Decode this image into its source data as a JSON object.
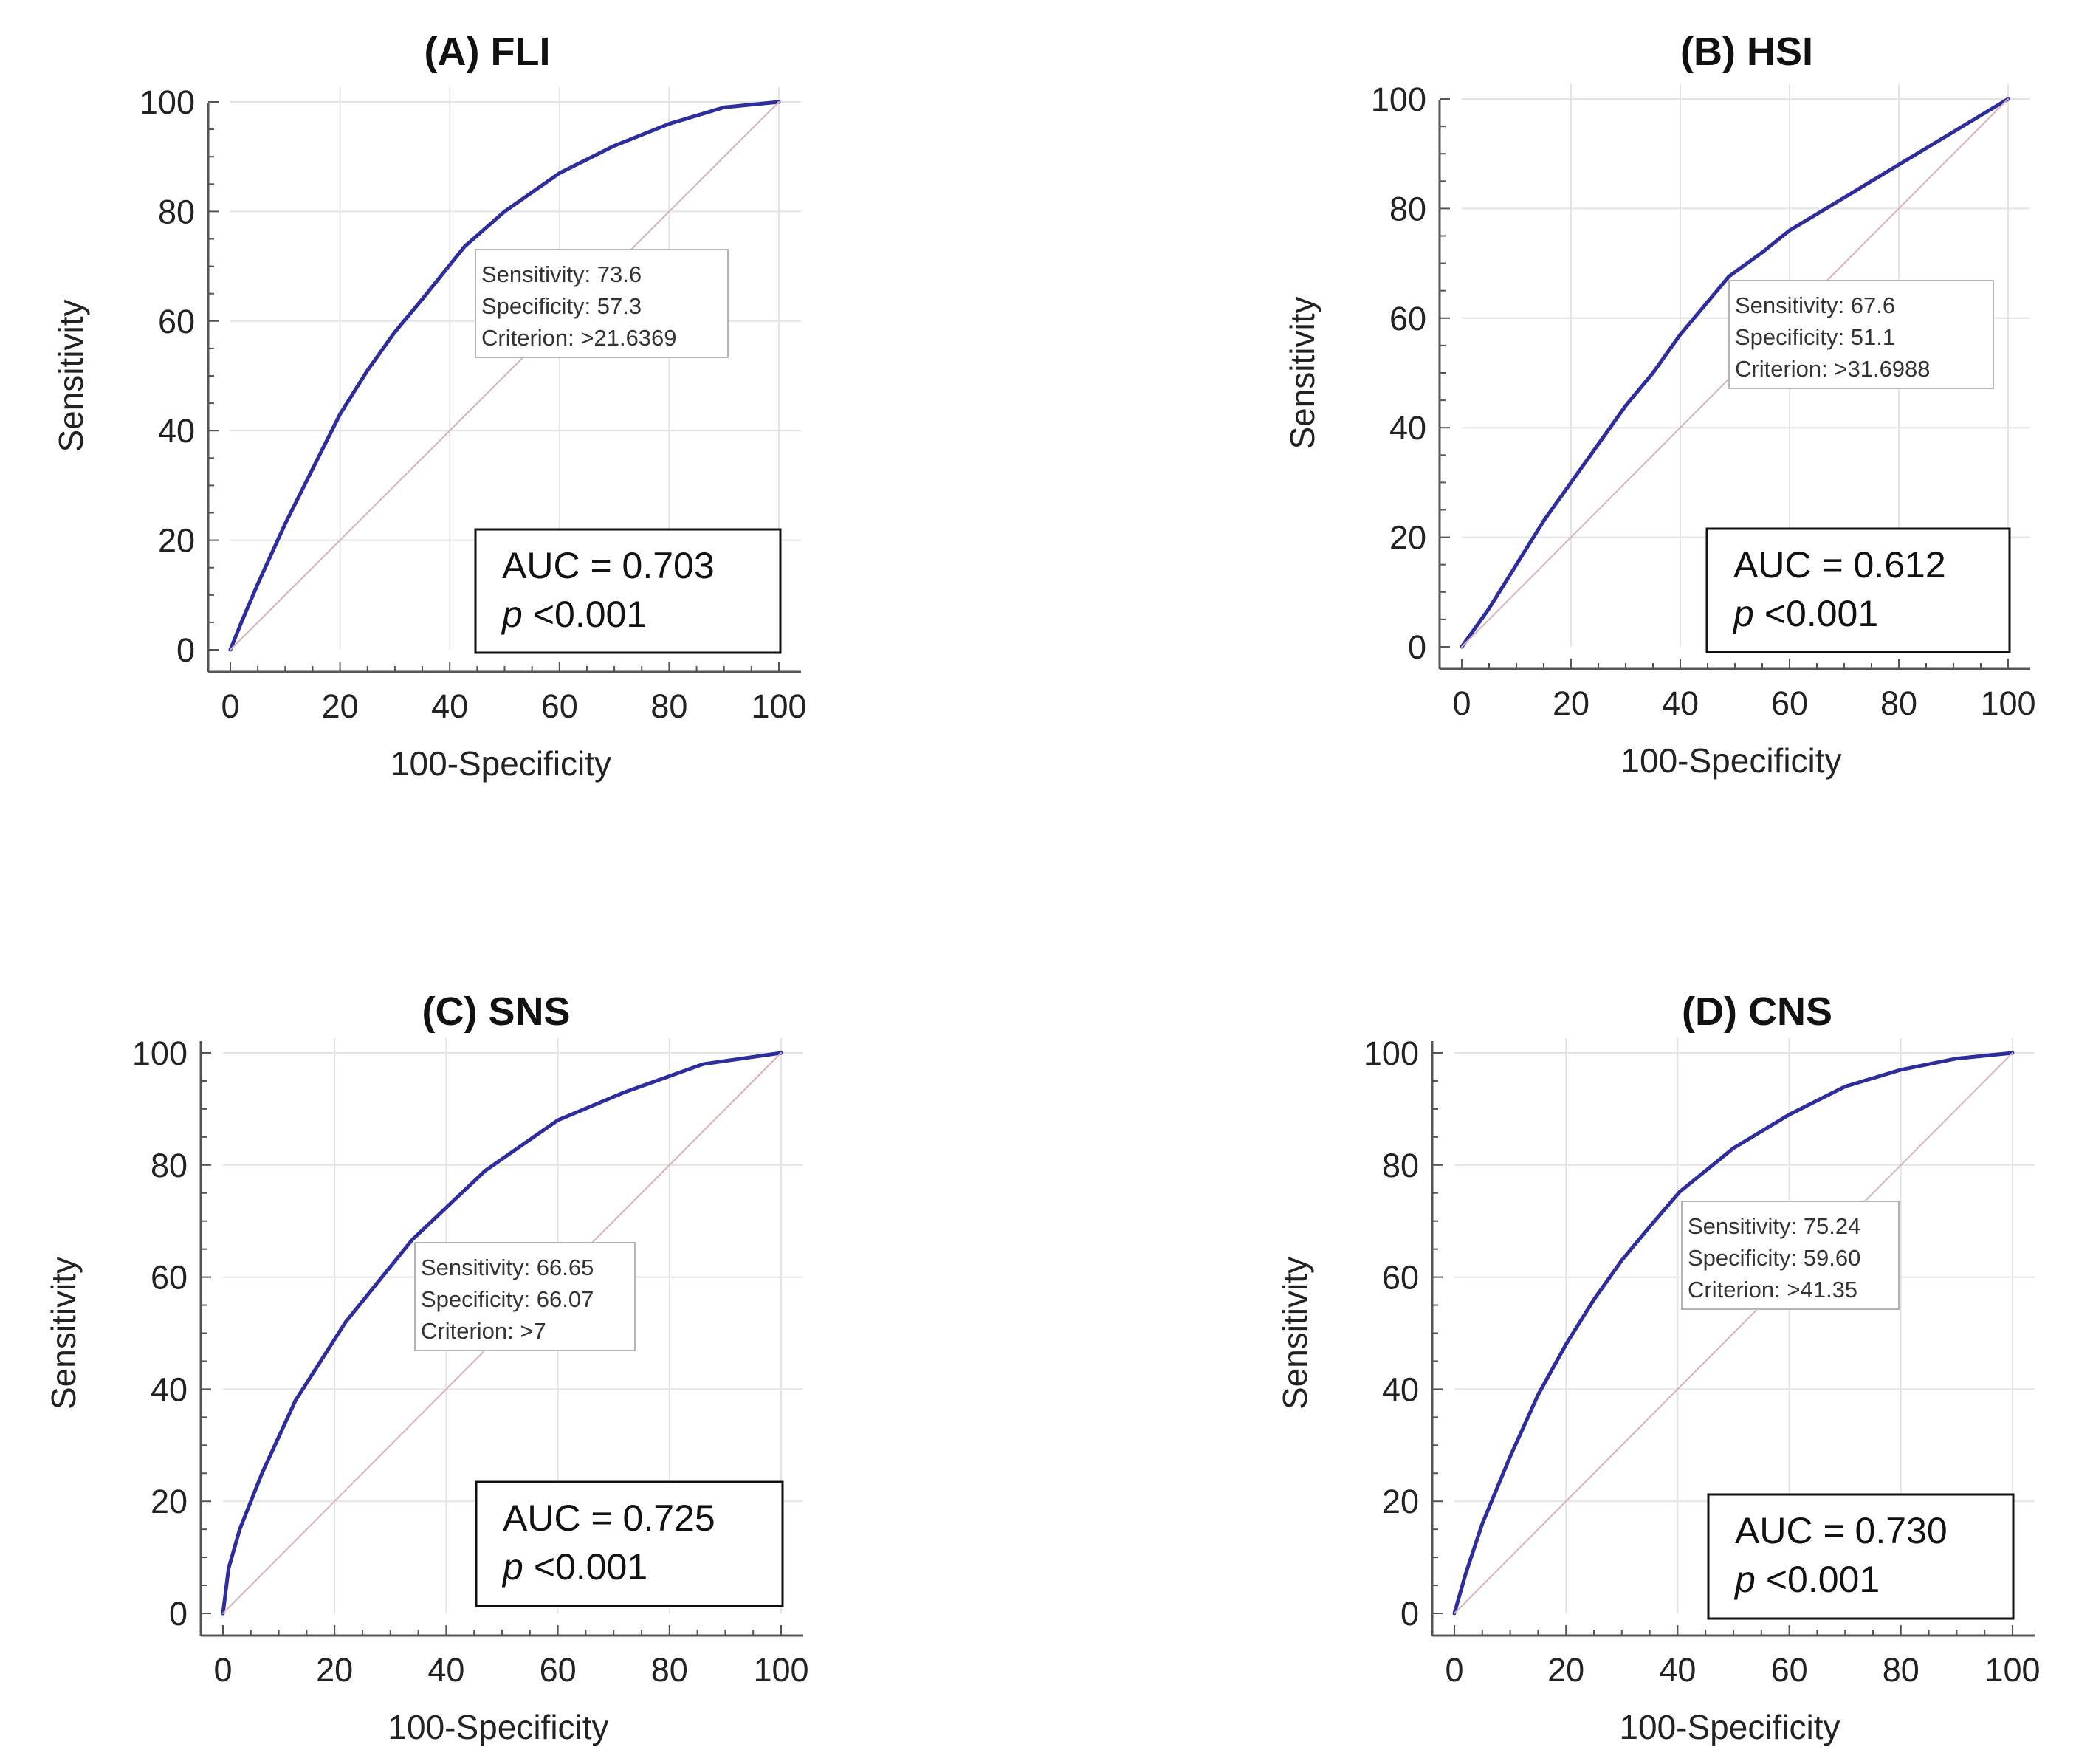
{
  "colors": {
    "roc": "#2d2d9e",
    "diagonal": "#d8b3b3",
    "grid": "#e4e4e4",
    "axis": "#555555"
  },
  "chart_data": [
    {
      "id": "A",
      "type": "line",
      "title": "(A) FLI",
      "xlabel": "100-Specificity",
      "ylabel": "Sensitivity",
      "xlim": [
        0,
        100
      ],
      "ylim": [
        0,
        100
      ],
      "xticks": [
        "0",
        "20",
        "40",
        "60",
        "80",
        "100"
      ],
      "yticks": [
        "0",
        "20",
        "40",
        "60",
        "80",
        "100"
      ],
      "series": [
        {
          "name": "ROC",
          "x": [
            0,
            2,
            5,
            10,
            15,
            20,
            25,
            30,
            35,
            42.7,
            50,
            60,
            70,
            80,
            90,
            100
          ],
          "y": [
            0,
            5,
            12,
            23,
            33,
            43,
            51,
            58,
            64,
            73.6,
            80,
            87,
            92,
            96,
            99,
            100
          ]
        },
        {
          "name": "Reference",
          "x": [
            0,
            100
          ],
          "y": [
            0,
            100
          ]
        }
      ],
      "annotation": {
        "sensitivity": "Sensitivity: 73.6",
        "specificity": "Specificity: 57.3",
        "criterion": "Criterion: >21.6369"
      },
      "auc": {
        "text": "AUC = 0.703",
        "p_symbol": "p",
        "p_value": "<0.001"
      }
    },
    {
      "id": "B",
      "type": "line",
      "title": "(B) HSI",
      "xlabel": "100-Specificity",
      "ylabel": "Sensitivity",
      "xlim": [
        0,
        100
      ],
      "ylim": [
        0,
        100
      ],
      "xticks": [
        "0",
        "20",
        "40",
        "60",
        "80",
        "100"
      ],
      "yticks": [
        "0",
        "20",
        "40",
        "60",
        "80",
        "100"
      ],
      "series": [
        {
          "name": "ROC",
          "x": [
            0,
            5,
            10,
            15,
            20,
            25,
            30,
            35,
            40,
            48.9,
            55,
            60,
            70,
            80,
            90,
            100
          ],
          "y": [
            0,
            7,
            15,
            23,
            30,
            37,
            44,
            50,
            57,
            67.6,
            72,
            76,
            82,
            88,
            94,
            100
          ]
        },
        {
          "name": "Reference",
          "x": [
            0,
            100
          ],
          "y": [
            0,
            100
          ]
        }
      ],
      "annotation": {
        "sensitivity": "Sensitivity: 67.6",
        "specificity": "Specificity: 51.1",
        "criterion": "Criterion: >31.6988"
      },
      "auc": {
        "text": "AUC = 0.612",
        "p_symbol": "p",
        "p_value": "<0.001"
      }
    },
    {
      "id": "C",
      "type": "line",
      "title": "(C) SNS",
      "xlabel": "100-Specificity",
      "ylabel": "Sensitivity",
      "xlim": [
        0,
        100
      ],
      "ylim": [
        0,
        100
      ],
      "xticks": [
        "0",
        "20",
        "40",
        "60",
        "80",
        "100"
      ],
      "yticks": [
        "0",
        "20",
        "40",
        "60",
        "80",
        "100"
      ],
      "series": [
        {
          "name": "ROC",
          "x": [
            0,
            1,
            3,
            7,
            13,
            22,
            33.9,
            47,
            60,
            72,
            86,
            100
          ],
          "y": [
            0,
            8,
            15,
            25,
            38,
            52,
            66.65,
            79,
            88,
            93,
            98,
            100
          ]
        },
        {
          "name": "Reference",
          "x": [
            0,
            100
          ],
          "y": [
            0,
            100
          ]
        }
      ],
      "annotation": {
        "sensitivity": "Sensitivity: 66.65",
        "specificity": "Specificity: 66.07",
        "criterion": "Criterion: >7"
      },
      "auc": {
        "text": "AUC = 0.725",
        "p_symbol": "p",
        "p_value": "<0.001"
      }
    },
    {
      "id": "D",
      "type": "line",
      "title": "(D) CNS",
      "xlabel": "100-Specificity",
      "ylabel": "Sensitivity",
      "xlim": [
        0,
        100
      ],
      "ylim": [
        0,
        100
      ],
      "xticks": [
        "0",
        "20",
        "40",
        "60",
        "80",
        "100"
      ],
      "yticks": [
        "0",
        "20",
        "40",
        "60",
        "80",
        "100"
      ],
      "series": [
        {
          "name": "ROC",
          "x": [
            0,
            2,
            5,
            10,
            15,
            20,
            25,
            30,
            35,
            40.4,
            50,
            60,
            70,
            80,
            90,
            100
          ],
          "y": [
            0,
            7,
            16,
            28,
            39,
            48,
            56,
            63,
            69,
            75.24,
            83,
            89,
            94,
            97,
            99,
            100
          ]
        },
        {
          "name": "Reference",
          "x": [
            0,
            100
          ],
          "y": [
            0,
            100
          ]
        }
      ],
      "annotation": {
        "sensitivity": "Sensitivity: 75.24",
        "specificity": "Specificity: 59.60",
        "criterion": "Criterion: >41.35"
      },
      "auc": {
        "text": "AUC = 0.730",
        "p_symbol": "p",
        "p_value": "<0.001"
      }
    }
  ]
}
